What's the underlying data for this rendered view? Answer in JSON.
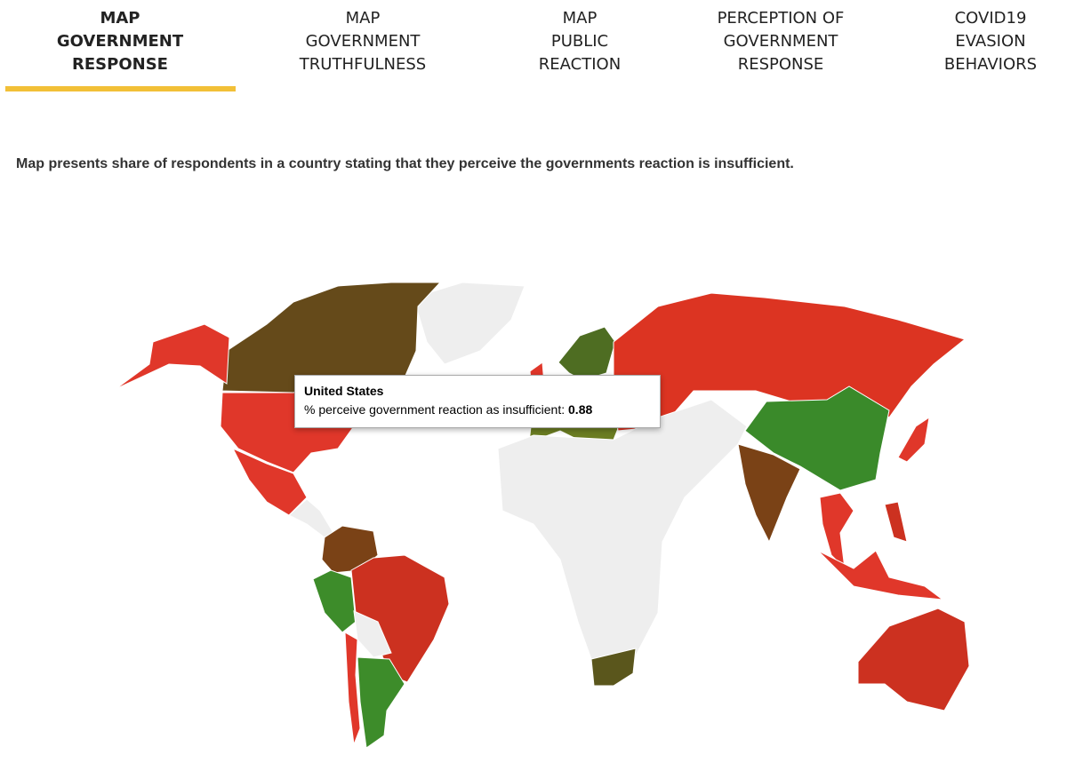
{
  "tabs": [
    {
      "lines": [
        "MAP",
        "GOVERNMENT",
        "RESPONSE"
      ]
    },
    {
      "lines": [
        "MAP",
        "GOVERNMENT",
        "TRUTHFULNESS"
      ]
    },
    {
      "lines": [
        "MAP",
        "PUBLIC",
        "REACTION"
      ]
    },
    {
      "lines": [
        "PERCEPTION OF",
        "GOVERNMENT",
        "RESPONSE"
      ]
    },
    {
      "lines": [
        "COVID19",
        "EVASION",
        "BEHAVIORS"
      ]
    }
  ],
  "description": "Map presents share of respondents in a country stating that they perceive the governments reaction is insufficient.",
  "tooltip": {
    "country": "United States",
    "label": "% perceive government reaction as insufficient:",
    "value": 0.88
  }
}
